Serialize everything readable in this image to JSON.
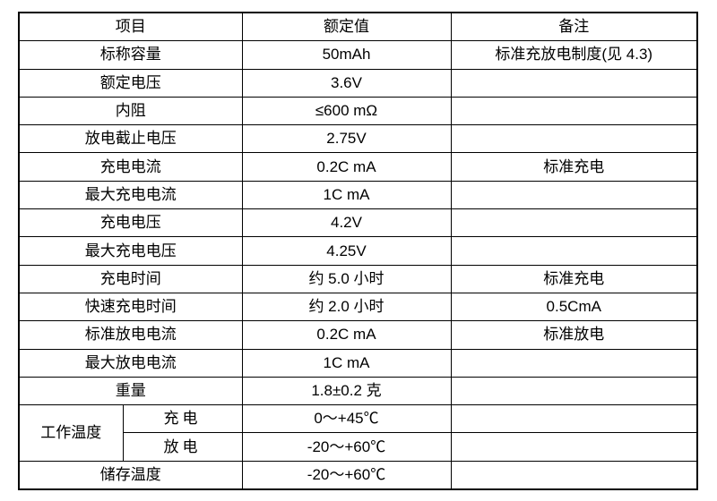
{
  "header": {
    "item": "项目",
    "rated": "额定值",
    "note": "备注"
  },
  "rows": [
    {
      "item": "标称容量",
      "value": "50mAh",
      "note": "标准充放电制度(见 4.3)"
    },
    {
      "item": "额定电压",
      "value": "3.6V",
      "note": ""
    },
    {
      "item": "内阻",
      "value": "≤600 mΩ",
      "note": ""
    },
    {
      "item": "放电截止电压",
      "value": "2.75V",
      "note": ""
    },
    {
      "item": "充电电流",
      "value": "0.2C mA",
      "note": "标准充电"
    },
    {
      "item": "最大充电电流",
      "value": "1C mA",
      "note": ""
    },
    {
      "item": "充电电压",
      "value": "4.2V",
      "note": ""
    },
    {
      "item": "最大充电电压",
      "value": "4.25V",
      "note": ""
    },
    {
      "item": "充电时间",
      "value": "约 5.0 小时",
      "note": "标准充电"
    },
    {
      "item": "快速充电时间",
      "value": "约 2.0 小时",
      "note": "0.5CmA"
    },
    {
      "item": "标准放电电流",
      "value": "0.2C mA",
      "note": "标准放电"
    },
    {
      "item": "最大放电电流",
      "value": "1C mA",
      "note": ""
    },
    {
      "item": "重量",
      "value": "1.8±0.2  克",
      "note": ""
    }
  ],
  "operating_temp": {
    "label": "工作温度",
    "charge": {
      "label": "充电",
      "value": "0～+45℃",
      "note": ""
    },
    "discharge": {
      "label": "放电",
      "value": "-20～+60℃",
      "note": ""
    }
  },
  "storage_temp": {
    "label": "储存温度",
    "value": "-20～+60℃",
    "note": ""
  }
}
